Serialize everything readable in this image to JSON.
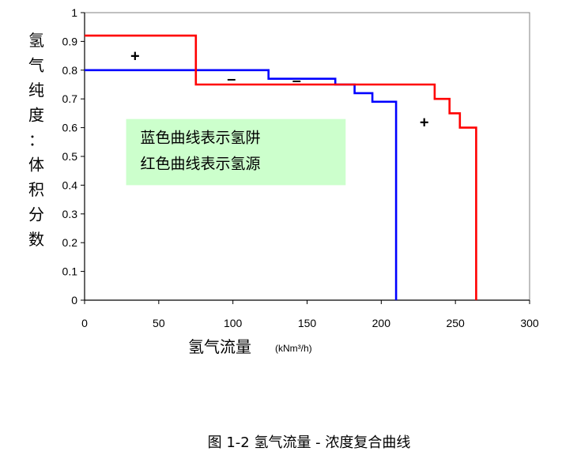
{
  "chart_data": {
    "type": "line",
    "title": "",
    "ylabel": "氢气纯度：体积分数",
    "xlabel": "氢气流量",
    "xunit": "(kNm³/h)",
    "xlim": [
      0,
      300
    ],
    "ylim": [
      0,
      1
    ],
    "xticks": [
      "0",
      "50",
      "100",
      "150",
      "200",
      "250",
      "300"
    ],
    "yticks": [
      "0",
      "0.1",
      "0.2",
      "0.3",
      "0.4",
      "0.5",
      "0.6",
      "0.7",
      "0.8",
      "0.9",
      "1"
    ],
    "grid": false,
    "series": [
      {
        "name": "氢阱",
        "color": "#0000ff",
        "points": [
          [
            0,
            0.8
          ],
          [
            124,
            0.8
          ],
          [
            124,
            0.77
          ],
          [
            169,
            0.77
          ],
          [
            169,
            0.75
          ],
          [
            182,
            0.75
          ],
          [
            182,
            0.72
          ],
          [
            194,
            0.72
          ],
          [
            194,
            0.69
          ],
          [
            210,
            0.69
          ],
          [
            210,
            0
          ]
        ]
      },
      {
        "name": "氢源",
        "color": "#ff0000",
        "points": [
          [
            0,
            0.92
          ],
          [
            75,
            0.92
          ],
          [
            75,
            0.75
          ],
          [
            236,
            0.75
          ],
          [
            236,
            0.7
          ],
          [
            246,
            0.7
          ],
          [
            246,
            0.65
          ],
          [
            253,
            0.65
          ],
          [
            253,
            0.6
          ],
          [
            264,
            0.6
          ],
          [
            264,
            0
          ]
        ]
      }
    ],
    "annotations": [
      {
        "text": "+",
        "x": 34,
        "y": 0.85
      },
      {
        "text": "–",
        "x": 99,
        "y": 0.77
      },
      {
        "text": "–",
        "x": 143,
        "y": 0.765
      },
      {
        "text": "+",
        "x": 229,
        "y": 0.62
      }
    ],
    "legend": {
      "lines": [
        "蓝色曲线表示氢阱",
        "红色曲线表示氢源"
      ],
      "background": "#ccffcc",
      "placement": "center-left"
    },
    "caption": "图  1-2 氢气流量 - 浓度复合曲线"
  }
}
